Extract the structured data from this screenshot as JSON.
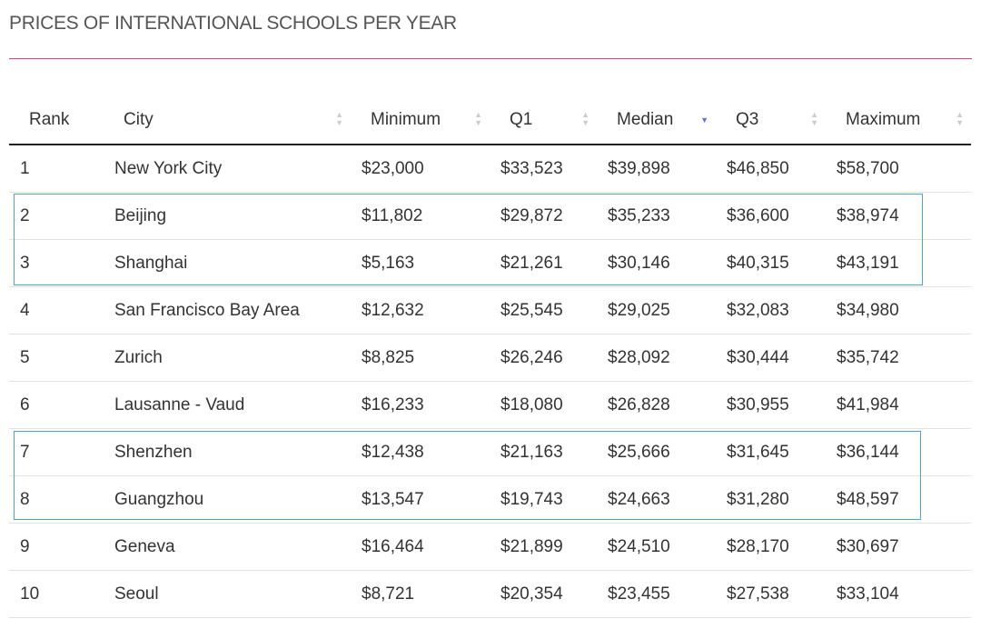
{
  "title": "PRICES OF INTERNATIONAL SCHOOLS PER YEAR",
  "columns": [
    "Rank",
    "City",
    "Minimum",
    "Q1",
    "Median",
    "Q3",
    "Maximum"
  ],
  "sorted_column": "Median",
  "sort_direction": "descending",
  "accent_color": "#e8416a",
  "highlight_color": "#4aa3df",
  "highlighted_ranks": [
    [
      2,
      3
    ],
    [
      7,
      8
    ]
  ],
  "rows": [
    [
      "1",
      "New York City",
      "$23,000",
      "$33,523",
      "$39,898",
      "$46,850",
      "$58,700"
    ],
    [
      "2",
      "Beijing",
      "$11,802",
      "$29,872",
      "$35,233",
      "$36,600",
      "$38,974"
    ],
    [
      "3",
      "Shanghai",
      "$5,163",
      "$21,261",
      "$30,146",
      "$40,315",
      "$43,191"
    ],
    [
      "4",
      "San Francisco Bay Area",
      "$12,632",
      "$25,545",
      "$29,025",
      "$32,083",
      "$34,980"
    ],
    [
      "5",
      "Zurich",
      "$8,825",
      "$26,246",
      "$28,092",
      "$30,444",
      "$35,742"
    ],
    [
      "6",
      "Lausanne - Vaud",
      "$16,233",
      "$18,080",
      "$26,828",
      "$30,955",
      "$41,984"
    ],
    [
      "7",
      "Shenzhen",
      "$12,438",
      "$21,163",
      "$25,666",
      "$31,645",
      "$36,144"
    ],
    [
      "8",
      "Guangzhou",
      "$13,547",
      "$19,743",
      "$24,663",
      "$31,280",
      "$48,597"
    ],
    [
      "9",
      "Geneva",
      "$16,464",
      "$21,899",
      "$24,510",
      "$28,170",
      "$30,697"
    ],
    [
      "10",
      "Seoul",
      "$8,721",
      "$20,354",
      "$23,455",
      "$27,538",
      "$33,104"
    ]
  ]
}
